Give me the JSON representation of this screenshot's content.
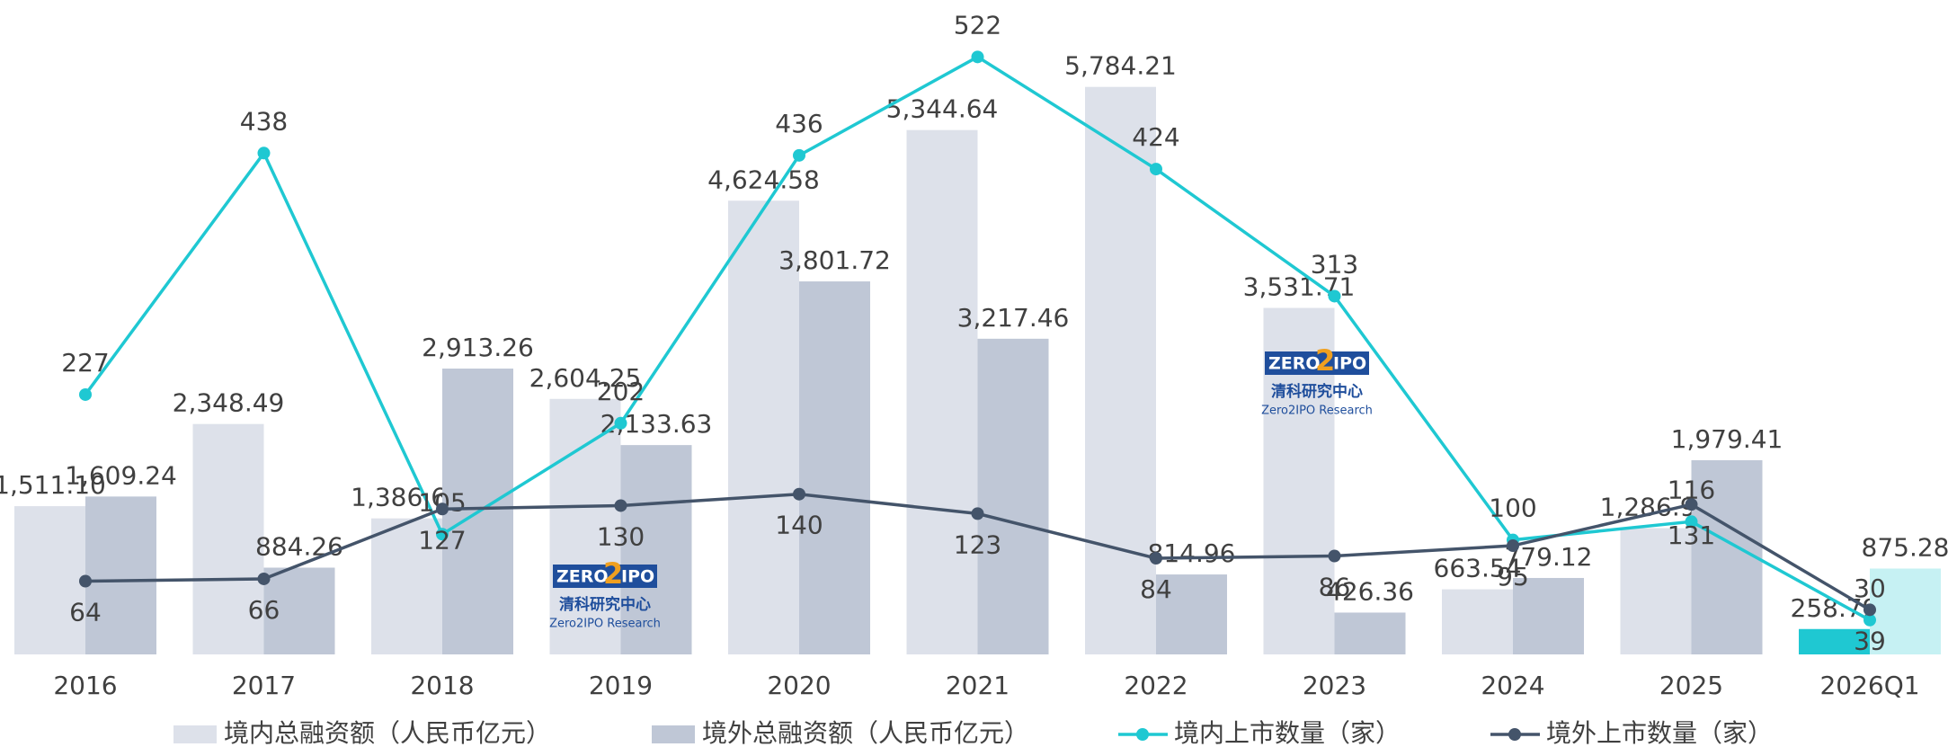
{
  "chart_data": {
    "type": "bar_line",
    "categories": [
      "2016",
      "2017",
      "2018",
      "2019",
      "2020",
      "2021",
      "2022",
      "2023",
      "2024",
      "2025",
      "2026Q1"
    ],
    "series": [
      {
        "name": "境内总融资额（人民币亿元）",
        "type": "bar",
        "color": "#dde1ea",
        "colors": [
          "#dde1ea",
          "#dde1ea",
          "#dde1ea",
          "#dde1ea",
          "#dde1ea",
          "#dde1ea",
          "#dde1ea",
          "#dde1ea",
          "#dde1ea",
          "#dde1ea",
          "#1fc8d2"
        ],
        "values": [
          1511.1,
          2348.49,
          1386.62,
          2604.25,
          4624.58,
          5344.64,
          5784.21,
          3531.71,
          663.54,
          1286.92,
          258.79
        ],
        "value_labels": [
          "1,511.10",
          "2,348.49",
          "1,386.62",
          "2,604.25",
          "4,624.58",
          "5,344.64",
          "5,784.21",
          "3,531.71",
          "663.54",
          "1,286.92",
          "258.79"
        ]
      },
      {
        "name": "境外总融资额（人民币亿元）",
        "type": "bar",
        "color": "#bfc7d6",
        "colors": [
          "#bfc7d6",
          "#bfc7d6",
          "#bfc7d6",
          "#bfc7d6",
          "#bfc7d6",
          "#bfc7d6",
          "#bfc7d6",
          "#bfc7d6",
          "#bfc7d6",
          "#bfc7d6",
          "#c6f1f3"
        ],
        "values": [
          1609.24,
          884.26,
          2913.26,
          2133.63,
          3801.72,
          3217.46,
          814.96,
          426.36,
          779.12,
          1979.41,
          875.28
        ],
        "value_labels": [
          "1,609.24",
          "884.26",
          "2,913.26",
          "2,133.63",
          "3,801.72",
          "3,217.46",
          "814.96",
          "426.36",
          "779.12",
          "1,979.41",
          "875.28"
        ]
      },
      {
        "name": "境内上市数量（家）",
        "type": "line",
        "axis": "y2",
        "color": "#1fc8d2",
        "values": [
          227,
          438,
          105,
          202,
          436,
          522,
          424,
          313,
          100,
          116,
          30
        ]
      },
      {
        "name": "境外上市数量（家）",
        "type": "line",
        "axis": "y2",
        "color": "#44546a",
        "values": [
          64,
          66,
          127,
          130,
          140,
          123,
          84,
          86,
          95,
          131,
          39
        ]
      }
    ],
    "ylim": [
      0,
      7000
    ],
    "y2lim": [
      0,
      600
    ],
    "legend": "bottom",
    "watermark": {
      "logo_left": "ZERO",
      "logo_mid": "2",
      "logo_right": "IPO",
      "name": "清科研究中心",
      "name_en": "Zero2IPO Research"
    }
  }
}
